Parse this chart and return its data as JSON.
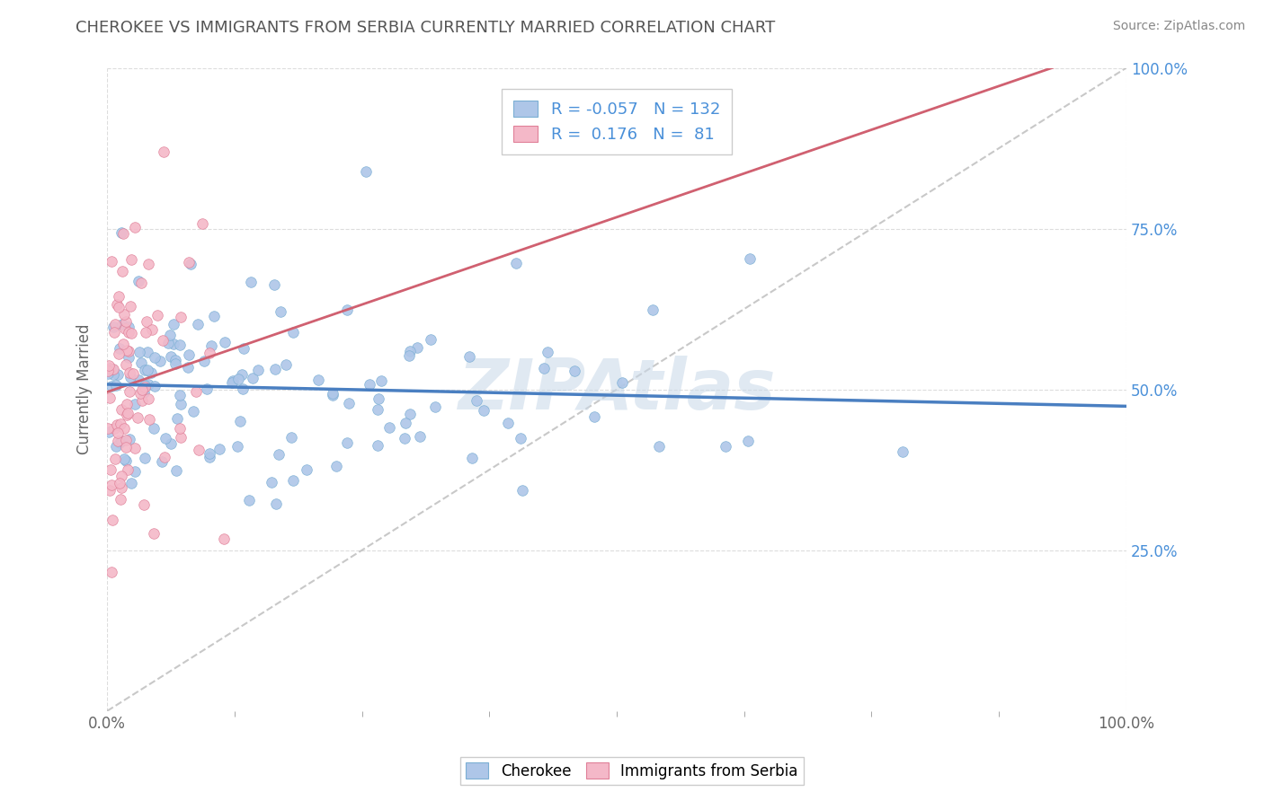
{
  "title": "CHEROKEE VS IMMIGRANTS FROM SERBIA CURRENTLY MARRIED CORRELATION CHART",
  "source_text": "Source: ZipAtlas.com",
  "ylabel": "Currently Married",
  "blue_R": -0.057,
  "blue_N": 132,
  "pink_R": 0.176,
  "pink_N": 81,
  "blue_color": "#aec6e8",
  "pink_color": "#f4b8c8",
  "blue_edge": "#7bafd4",
  "pink_edge": "#e08098",
  "blue_line_color": "#4a7fc1",
  "pink_line_color": "#d06070",
  "gray_line_color": "#bbbbbb",
  "background_color": "#ffffff",
  "grid_color": "#dddddd",
  "title_color": "#555555",
  "watermark_color": "#c8d8e8",
  "right_tick_color": "#4a90d9",
  "legend_text_color": "#4a90d9"
}
